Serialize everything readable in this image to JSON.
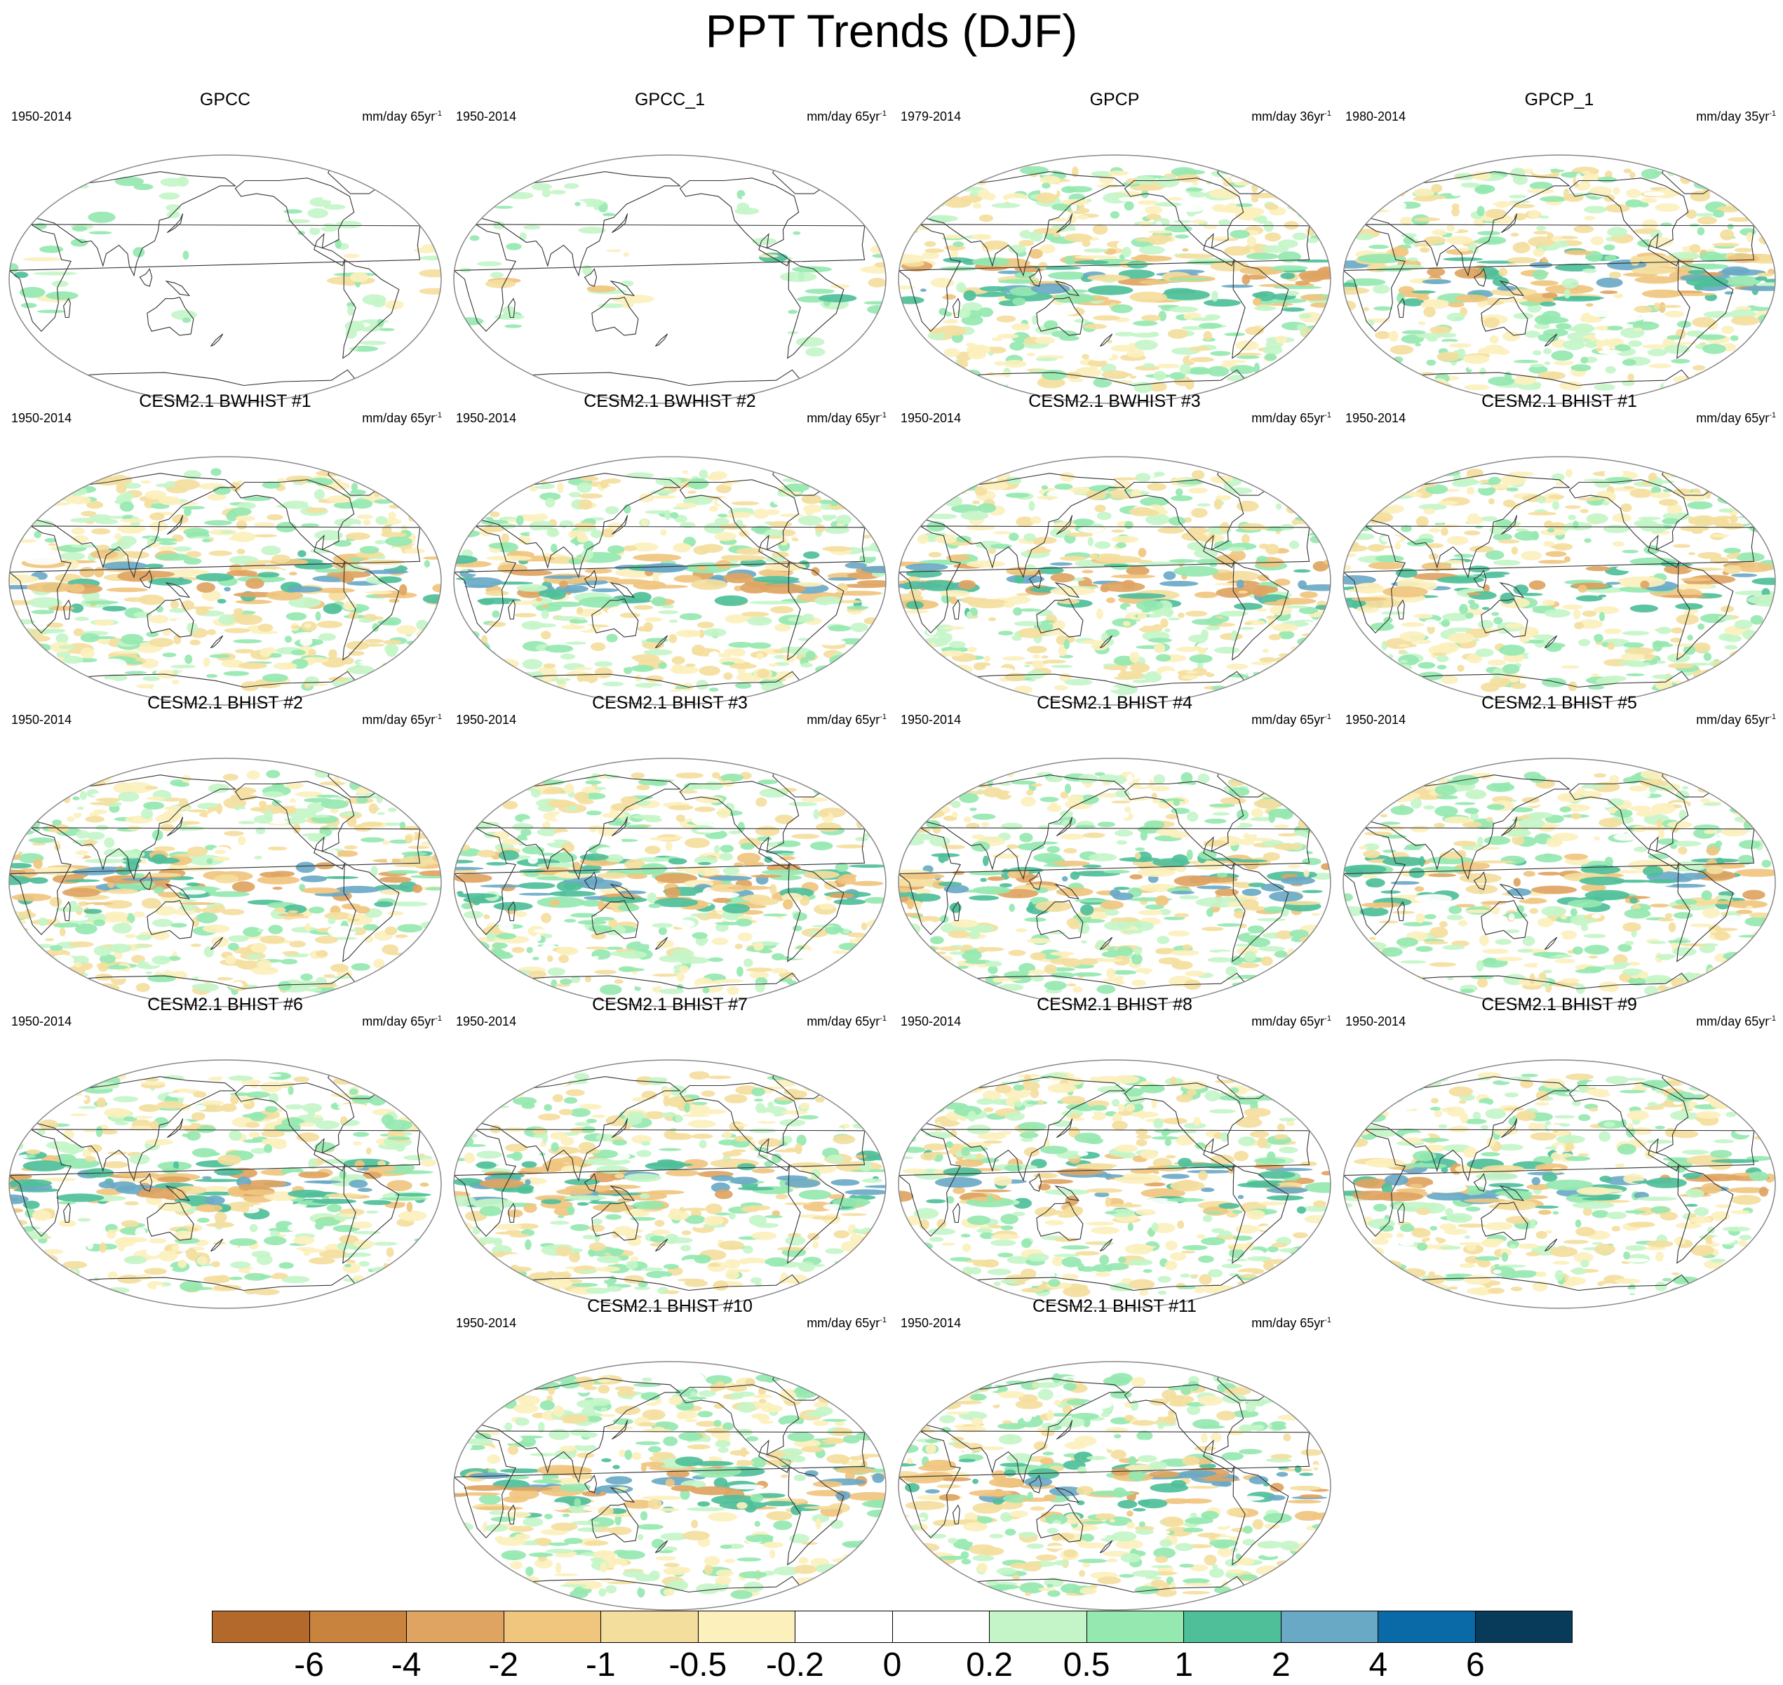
{
  "title": "PPT Trends (DJF)",
  "panels": [
    {
      "title": "GPCC",
      "period": "1950-2014",
      "units_base": "mm/day 65yr",
      "units_exp": "-1",
      "coverage": "land",
      "style": "obs",
      "seed": 3
    },
    {
      "title": "GPCC_1",
      "period": "1950-2014",
      "units_base": "mm/day 65yr",
      "units_exp": "-1",
      "coverage": "land",
      "style": "obs",
      "seed": 5
    },
    {
      "title": "GPCP",
      "period": "1979-2014",
      "units_base": "mm/day 36yr",
      "units_exp": "-1",
      "coverage": "global",
      "style": "obs",
      "seed": 11
    },
    {
      "title": "GPCP_1",
      "period": "1980-2014",
      "units_base": "mm/day 35yr",
      "units_exp": "-1",
      "coverage": "global",
      "style": "obs",
      "seed": 13
    },
    {
      "title": "CESM2.1 BWHIST #1",
      "period": "1950-2014",
      "units_base": "mm/day 65yr",
      "units_exp": "-1",
      "coverage": "global",
      "style": "model",
      "seed": 17
    },
    {
      "title": "CESM2.1 BWHIST #2",
      "period": "1950-2014",
      "units_base": "mm/day 65yr",
      "units_exp": "-1",
      "coverage": "global",
      "style": "model",
      "seed": 19
    },
    {
      "title": "CESM2.1 BWHIST #3",
      "period": "1950-2014",
      "units_base": "mm/day 65yr",
      "units_exp": "-1",
      "coverage": "global",
      "style": "model",
      "seed": 23
    },
    {
      "title": "CESM2.1 BHIST #1",
      "period": "1950-2014",
      "units_base": "mm/day 65yr",
      "units_exp": "-1",
      "coverage": "global",
      "style": "model",
      "seed": 29
    },
    {
      "title": "CESM2.1 BHIST #2",
      "period": "1950-2014",
      "units_base": "mm/day 65yr",
      "units_exp": "-1",
      "coverage": "global",
      "style": "model",
      "seed": 31
    },
    {
      "title": "CESM2.1 BHIST #3",
      "period": "1950-2014",
      "units_base": "mm/day 65yr",
      "units_exp": "-1",
      "coverage": "global",
      "style": "model",
      "seed": 37
    },
    {
      "title": "CESM2.1 BHIST #4",
      "period": "1950-2014",
      "units_base": "mm/day 65yr",
      "units_exp": "-1",
      "coverage": "global",
      "style": "model",
      "seed": 41
    },
    {
      "title": "CESM2.1 BHIST #5",
      "period": "1950-2014",
      "units_base": "mm/day 65yr",
      "units_exp": "-1",
      "coverage": "global",
      "style": "model",
      "seed": 43
    },
    {
      "title": "CESM2.1 BHIST #6",
      "period": "1950-2014",
      "units_base": "mm/day 65yr",
      "units_exp": "-1",
      "coverage": "global",
      "style": "model",
      "seed": 47
    },
    {
      "title": "CESM2.1 BHIST #7",
      "period": "1950-2014",
      "units_base": "mm/day 65yr",
      "units_exp": "-1",
      "coverage": "global",
      "style": "model",
      "seed": 53
    },
    {
      "title": "CESM2.1 BHIST #8",
      "period": "1950-2014",
      "units_base": "mm/day 65yr",
      "units_exp": "-1",
      "coverage": "global",
      "style": "model",
      "seed": 59
    },
    {
      "title": "CESM2.1 BHIST #9",
      "period": "1950-2014",
      "units_base": "mm/day 65yr",
      "units_exp": "-1",
      "coverage": "global",
      "style": "model",
      "seed": 61
    },
    {
      "title": "CESM2.1 BHIST #10",
      "period": "1950-2014",
      "units_base": "mm/day 65yr",
      "units_exp": "-1",
      "coverage": "global",
      "style": "model",
      "seed": 67
    },
    {
      "title": "CESM2.1 BHIST #11",
      "period": "1950-2014",
      "units_base": "mm/day 65yr",
      "units_exp": "-1",
      "coverage": "global",
      "style": "model",
      "seed": 71
    }
  ],
  "colorbar": {
    "levels": [
      "-6",
      "-4",
      "-2",
      "-1",
      "-0.5",
      "-0.2",
      "0",
      "0.2",
      "0.5",
      "1",
      "2",
      "4",
      "6"
    ],
    "colors": [
      "#b3692c",
      "#c8843e",
      "#dfa462",
      "#f0c67f",
      "#f4de9e",
      "#fcf0bd",
      "#ffffff",
      "#ffffff",
      "#c4f5c8",
      "#95e8b0",
      "#4fbf9a",
      "#6aa9c6",
      "#0a6aa8",
      "#083a5a"
    ]
  },
  "map_style": {
    "border_color": "#888888",
    "coast_color": "#333333"
  }
}
